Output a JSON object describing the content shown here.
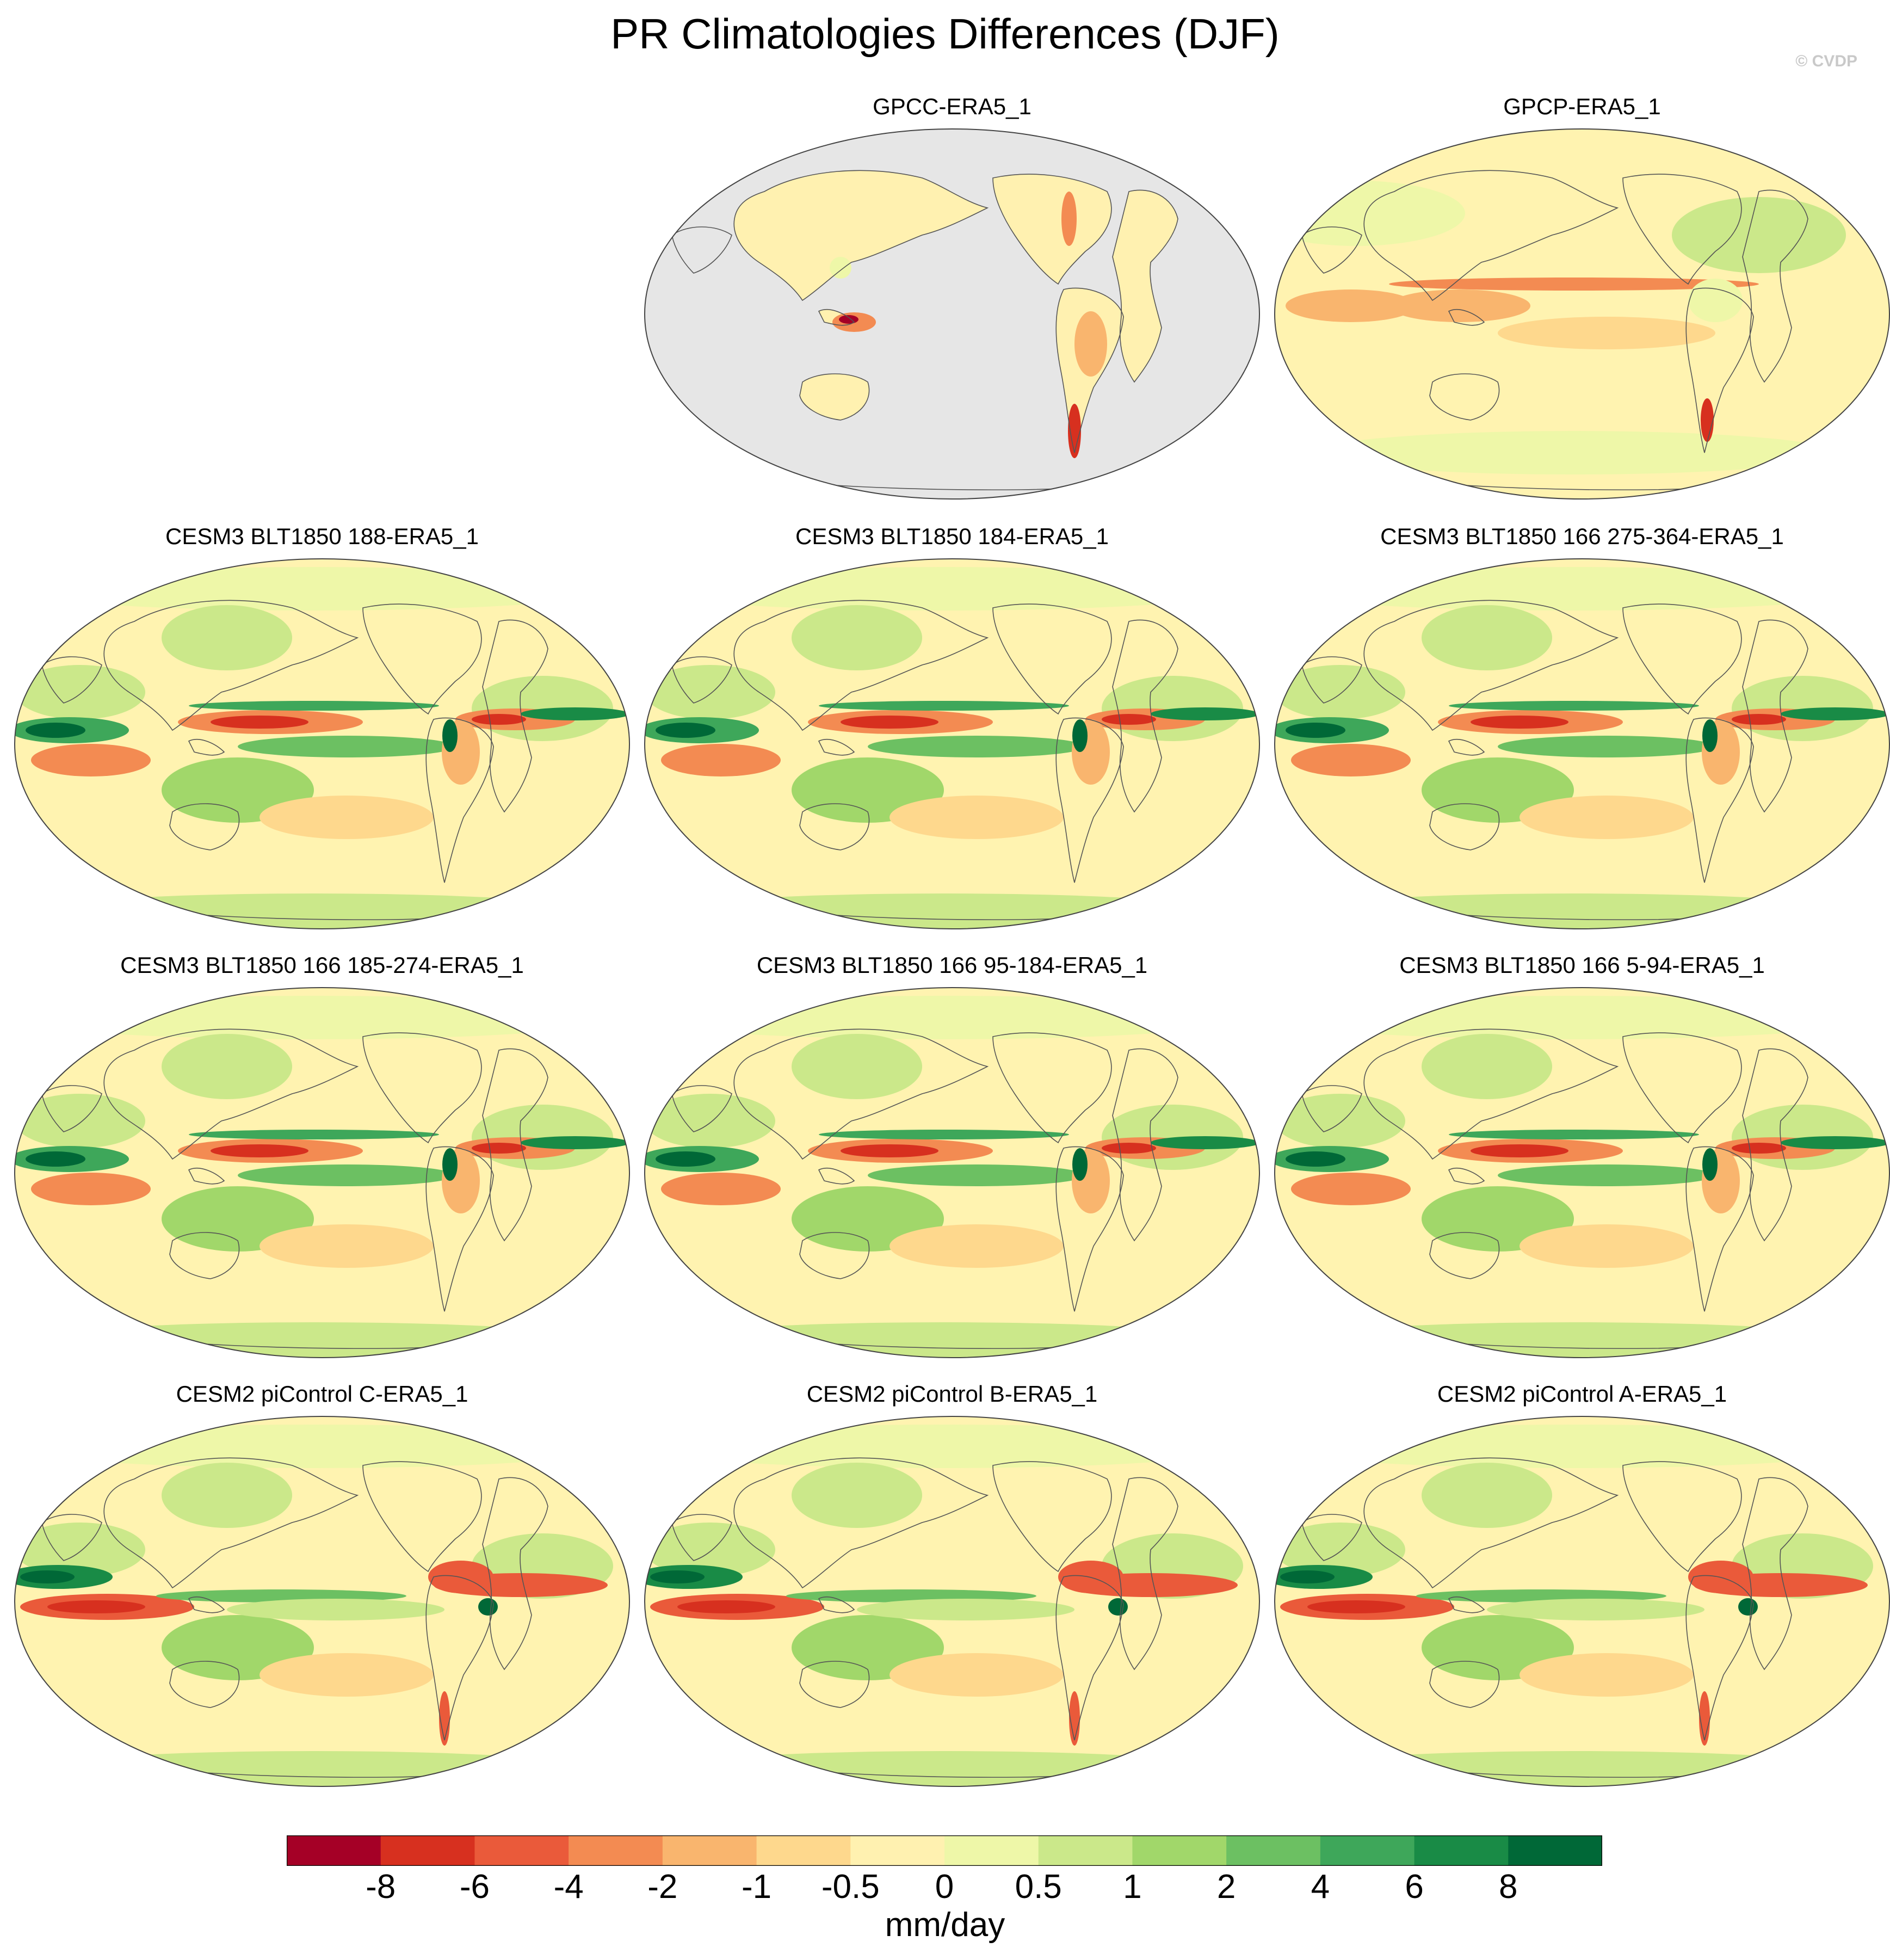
{
  "title": "PR Climatologies Differences (DJF)",
  "watermark": "© CVDP",
  "panels": [
    {
      "label": "GPCC-ERA5_1",
      "kind": "land_only"
    },
    {
      "label": "GPCP-ERA5_1",
      "kind": "obs"
    },
    {
      "label": "CESM3 BLT1850 188-ERA5_1",
      "kind": "cesm3"
    },
    {
      "label": "CESM3 BLT1850 184-ERA5_1",
      "kind": "cesm3"
    },
    {
      "label": "CESM3 BLT1850 166 275-364-ERA5_1",
      "kind": "cesm3"
    },
    {
      "label": "CESM3 BLT1850 166 185-274-ERA5_1",
      "kind": "cesm3"
    },
    {
      "label": "CESM3 BLT1850 166 95-184-ERA5_1",
      "kind": "cesm3"
    },
    {
      "label": "CESM3 BLT1850 166 5-94-ERA5_1",
      "kind": "cesm3"
    },
    {
      "label": "CESM2 piControl C-ERA5_1",
      "kind": "cesm2"
    },
    {
      "label": "CESM2 piControl B-ERA5_1",
      "kind": "cesm2"
    },
    {
      "label": "CESM2 piControl A-ERA5_1",
      "kind": "cesm2"
    }
  ],
  "colorbar": {
    "units": "mm/day",
    "levels": [
      "-8",
      "-6",
      "-4",
      "-2",
      "-1",
      "-0.5",
      "0",
      "0.5",
      "1",
      "2",
      "4",
      "6",
      "8"
    ],
    "colors": [
      "#a50026",
      "#d7301f",
      "#ea5a3a",
      "#f38b52",
      "#f9b56e",
      "#fed88d",
      "#fff1b0",
      "#eef7a8",
      "#cbe88a",
      "#a1d76a",
      "#6cc062",
      "#3ea75a",
      "#198b46",
      "#006837"
    ]
  },
  "colors": {
    "land_mask": "#e6e6e6",
    "coastline": "#555555",
    "map_bg": "#fff3b0"
  }
}
